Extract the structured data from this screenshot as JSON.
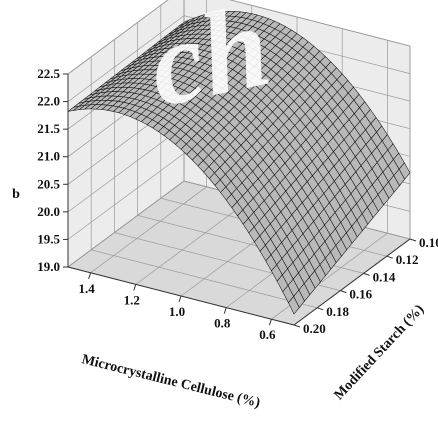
{
  "chart_data": {
    "type": "surface3d",
    "title": "",
    "zlabel": "b",
    "xlabel": "Microcrystalline Cellulose (%)",
    "ylabel": "Modified Starch (%)",
    "x_ticks": [
      "1.4",
      "1.2",
      "1.0",
      "0.8",
      "0.6"
    ],
    "y_ticks": [
      "0.10",
      "0.12",
      "0.14",
      "0.16",
      "0.18",
      "0.20"
    ],
    "z_ticks": [
      "19.0",
      "19.5",
      "20.0",
      "20.5",
      "21.0",
      "21.5",
      "22.0",
      "22.5"
    ],
    "xlim": [
      0.5,
      1.5
    ],
    "ylim": [
      0.1,
      0.2
    ],
    "zlim": [
      19.0,
      22.5
    ],
    "grid": true,
    "surface_corners": [
      {
        "x": 1.5,
        "y": 0.2,
        "z": 21.82
      },
      {
        "x": 1.5,
        "y": 0.1,
        "z": 21.88
      },
      {
        "x": 0.5,
        "y": 0.1,
        "z": 20.2
      },
      {
        "x": 0.5,
        "y": 0.2,
        "z": 19.2
      }
    ],
    "surface_peak": {
      "x": 1.2,
      "y": 0.1,
      "z": 22.35
    },
    "colors": {
      "surface": "#b9b9b9",
      "mesh": "#111111",
      "back_panel": "#ececec",
      "floor_panel": "#d9d9d9"
    }
  },
  "watermark": "ch"
}
